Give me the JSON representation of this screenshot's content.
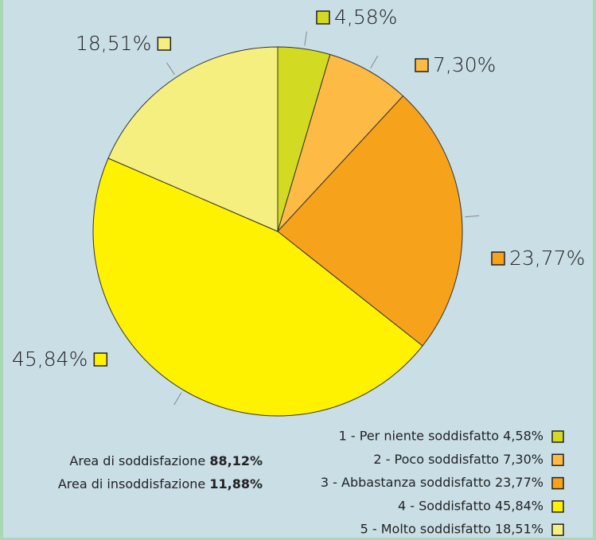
{
  "chart_data": {
    "type": "pie",
    "categories": [
      "1 - Per niente soddisfatto 4,58%",
      "2 - Poco soddisfatto 7,30%",
      "3 - Abbastanza soddisfatto 23,77%",
      "4 - Soddisfatto 45,84%",
      "5 - Molto soddisfatto 18,51%"
    ],
    "values": [
      4.58,
      7.3,
      23.77,
      45.84,
      18.51
    ],
    "value_labels": [
      "4,58%",
      "7,30%",
      "23,77%",
      "45,84%",
      "18,51%"
    ],
    "colors": [
      "#d3da22",
      "#fdbb45",
      "#f7a21b",
      "#fff200",
      "#f5ef80"
    ],
    "annotations": [
      {
        "text": "Area di soddisfazione",
        "value": "88,12%"
      },
      {
        "text": "Area di insoddisfazione",
        "value": "11,88%"
      }
    ]
  }
}
